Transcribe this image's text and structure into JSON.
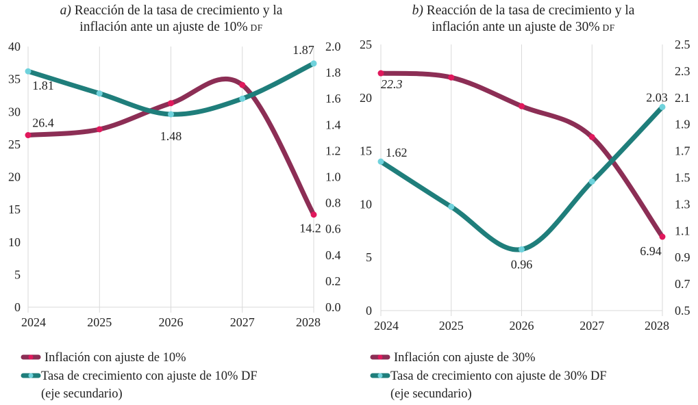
{
  "colors": {
    "inflation": "#8c2e55",
    "inflation_marker": "#e0185c",
    "growth": "#1f7e7b",
    "growth_marker": "#6fd2dc"
  },
  "chart_data": [
    {
      "type": "line",
      "title_letter": "a)",
      "title_line1": " Reacción de la tasa de crecimiento y la",
      "title_line2a": "inflación ante un ajuste de 10%",
      "title_line2b": " DF",
      "categories": [
        "2024",
        "2025",
        "2026",
        "2027",
        "2028"
      ],
      "y_left": {
        "ylim": [
          0,
          40
        ],
        "ticks": [
          "0",
          "5",
          "10",
          "15",
          "20",
          "25",
          "30",
          "35",
          "40"
        ]
      },
      "y_right": {
        "ylim": [
          0.0,
          2.0
        ],
        "ticks": [
          "0.0",
          "0.2",
          "0.4",
          "0.6",
          "0.8",
          "1.0",
          "1.2",
          "1.4",
          "1.6",
          "1.8",
          "2.0"
        ]
      },
      "series": [
        {
          "name": "Inflación con ajuste de 10%",
          "axis": "left",
          "values": [
            26.4,
            27.3,
            31.3,
            34.1,
            14.2
          ]
        },
        {
          "name": "Tasa de crecimiento con ajuste de 10% DF",
          "name_extra": "(eje secundario)",
          "axis": "right",
          "values": [
            1.81,
            1.64,
            1.48,
            1.6,
            1.87
          ]
        }
      ],
      "labels": [
        {
          "series": 0,
          "index": 0,
          "text": "26.4"
        },
        {
          "series": 0,
          "index": 4,
          "text": "14.2"
        },
        {
          "series": 1,
          "index": 0,
          "text": "1.81"
        },
        {
          "series": 1,
          "index": 2,
          "text": "1.48"
        },
        {
          "series": 1,
          "index": 4,
          "text": "1.87"
        }
      ]
    },
    {
      "type": "line",
      "title_letter": "b)",
      "title_line1": " Reacción de la tasa de crecimiento y la",
      "title_line2a": "inflación ante un ajuste de 30%",
      "title_line2b": " DF",
      "categories": [
        "2024",
        "2025",
        "2026",
        "2027",
        "2028"
      ],
      "y_left": {
        "ylim": [
          0,
          25
        ],
        "ticks": [
          "0",
          "5",
          "10",
          "15",
          "20",
          "25"
        ]
      },
      "y_right": {
        "ylim": [
          0.5,
          2.5
        ],
        "ticks": [
          "0.5",
          "0.7",
          "0.9",
          "1.1",
          "1.3",
          "1.5",
          "1.7",
          "1.9",
          "2.1",
          "2.3",
          "2.5"
        ]
      },
      "series": [
        {
          "name": "Inflación con ajuste de 30%",
          "axis": "left",
          "values": [
            22.3,
            21.9,
            19.2,
            16.3,
            6.94
          ]
        },
        {
          "name": "Tasa de crecimiento con ajuste de 30% DF",
          "name_extra": "(eje secundario)",
          "axis": "right",
          "values": [
            1.62,
            1.28,
            0.96,
            1.47,
            2.03
          ]
        }
      ],
      "labels": [
        {
          "series": 0,
          "index": 0,
          "text": "22.3"
        },
        {
          "series": 0,
          "index": 4,
          "text": "6.94"
        },
        {
          "series": 1,
          "index": 0,
          "text": "1.62"
        },
        {
          "series": 1,
          "index": 2,
          "text": "0.96"
        },
        {
          "series": 1,
          "index": 4,
          "text": "2.03"
        }
      ]
    }
  ]
}
